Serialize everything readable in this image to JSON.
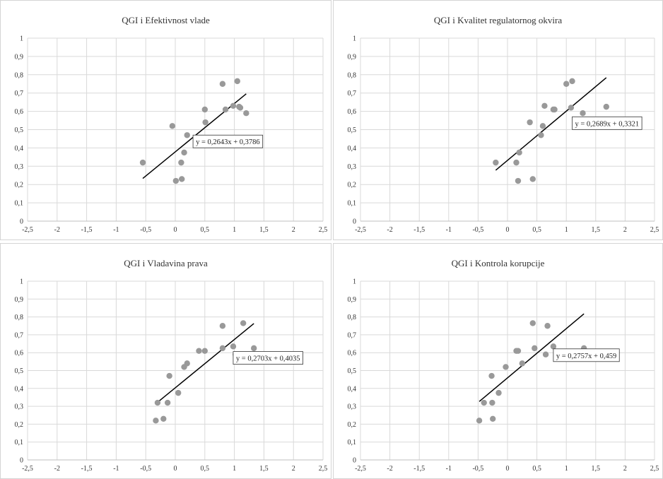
{
  "chart_data": [
    {
      "type": "scatter",
      "title": "QGI i Efektivnost vlade",
      "xlim": [
        -2.5,
        2.5
      ],
      "ylim": [
        0,
        1
      ],
      "xticks": [
        "-2,5",
        "-2",
        "-1,5",
        "-1",
        "-0,5",
        "0",
        "0,5",
        "1",
        "1,5",
        "2",
        "2,5"
      ],
      "yticks": [
        "0",
        "0,1",
        "0,2",
        "0,3",
        "0,4",
        "0,5",
        "0,6",
        "0,7",
        "0,8",
        "0,9",
        "1"
      ],
      "grid": true,
      "marker_color": "#999999",
      "line_color": "#000000",
      "points": [
        [
          -0.55,
          0.32
        ],
        [
          -0.05,
          0.52
        ],
        [
          0.01,
          0.22
        ],
        [
          0.1,
          0.32
        ],
        [
          0.11,
          0.23
        ],
        [
          0.15,
          0.375
        ],
        [
          0.2,
          0.47
        ],
        [
          0.5,
          0.61
        ],
        [
          0.51,
          0.54
        ],
        [
          0.8,
          0.75
        ],
        [
          0.85,
          0.61
        ],
        [
          0.98,
          0.63
        ],
        [
          1.05,
          0.765
        ],
        [
          1.08,
          0.625
        ],
        [
          1.1,
          0.62
        ],
        [
          1.2,
          0.59
        ]
      ],
      "trendline": {
        "slope": 0.2643,
        "intercept": 0.3786,
        "x_range": [
          -0.55,
          1.2
        ],
        "equation": "y = 0,2643x + 0,3786",
        "label_pos": [
          0.3,
          0.42
        ]
      }
    },
    {
      "type": "scatter",
      "title": "QGI i Kvalitet regulatornog okvira",
      "xlim": [
        -2.5,
        2.5
      ],
      "ylim": [
        0,
        1
      ],
      "xticks": [
        "-2,5",
        "-2",
        "-1,5",
        "-1",
        "-0,5",
        "0",
        "0,5",
        "1",
        "1,5",
        "2",
        "2,5"
      ],
      "yticks": [
        "0",
        "0,1",
        "0,2",
        "0,3",
        "0,4",
        "0,5",
        "0,6",
        "0,7",
        "0,8",
        "0,9",
        "1"
      ],
      "grid": true,
      "marker_color": "#999999",
      "line_color": "#000000",
      "points": [
        [
          -0.2,
          0.32
        ],
        [
          0.15,
          0.32
        ],
        [
          0.18,
          0.22
        ],
        [
          0.2,
          0.375
        ],
        [
          0.38,
          0.54
        ],
        [
          0.43,
          0.23
        ],
        [
          0.57,
          0.47
        ],
        [
          0.6,
          0.52
        ],
        [
          0.63,
          0.63
        ],
        [
          0.78,
          0.61
        ],
        [
          0.8,
          0.61
        ],
        [
          1.0,
          0.75
        ],
        [
          1.08,
          0.62
        ],
        [
          1.1,
          0.765
        ],
        [
          1.28,
          0.59
        ],
        [
          1.68,
          0.625
        ]
      ],
      "trendline": {
        "slope": 0.2689,
        "intercept": 0.3321,
        "x_range": [
          -0.2,
          1.68
        ],
        "equation": "y = 0,2689x + 0,3321",
        "label_pos": [
          1.1,
          0.52
        ]
      }
    },
    {
      "type": "scatter",
      "title": "QGI i Vladavina prava",
      "xlim": [
        -2.5,
        2.5
      ],
      "ylim": [
        0,
        1
      ],
      "xticks": [
        "-2,5",
        "-2",
        "-1,5",
        "-1",
        "-0,5",
        "0",
        "0,5",
        "1",
        "1,5",
        "2",
        "2,5"
      ],
      "yticks": [
        "0",
        "0,1",
        "0,2",
        "0,3",
        "0,4",
        "0,5",
        "0,6",
        "0,7",
        "0,8",
        "0,9",
        "1"
      ],
      "grid": true,
      "marker_color": "#999999",
      "line_color": "#000000",
      "points": [
        [
          -0.33,
          0.22
        ],
        [
          -0.3,
          0.32
        ],
        [
          -0.2,
          0.23
        ],
        [
          -0.13,
          0.32
        ],
        [
          -0.1,
          0.47
        ],
        [
          0.05,
          0.375
        ],
        [
          0.15,
          0.52
        ],
        [
          0.2,
          0.54
        ],
        [
          0.4,
          0.61
        ],
        [
          0.5,
          0.61
        ],
        [
          0.8,
          0.625
        ],
        [
          0.8,
          0.75
        ],
        [
          0.98,
          0.635
        ],
        [
          1.02,
          0.59
        ],
        [
          1.15,
          0.765
        ],
        [
          1.33,
          0.625
        ]
      ],
      "trendline": {
        "slope": 0.2703,
        "intercept": 0.4035,
        "x_range": [
          -0.33,
          1.33
        ],
        "equation": "y = 0,2703x + 0,4035",
        "label_pos": [
          0.98,
          0.555
        ]
      }
    },
    {
      "type": "scatter",
      "title": "QGI i Kontrola korupcije",
      "xlim": [
        -2.5,
        2.5
      ],
      "ylim": [
        0,
        1
      ],
      "xticks": [
        "-2,5",
        "-2",
        "-1,5",
        "-1",
        "-0,5",
        "0",
        "0,5",
        "1",
        "1,5",
        "2",
        "2,5"
      ],
      "yticks": [
        "0",
        "0,1",
        "0,2",
        "0,3",
        "0,4",
        "0,5",
        "0,6",
        "0,7",
        "0,8",
        "0,9",
        "1"
      ],
      "grid": true,
      "marker_color": "#999999",
      "line_color": "#000000",
      "points": [
        [
          -0.48,
          0.22
        ],
        [
          -0.4,
          0.32
        ],
        [
          -0.27,
          0.47
        ],
        [
          -0.26,
          0.32
        ],
        [
          -0.25,
          0.23
        ],
        [
          -0.15,
          0.375
        ],
        [
          -0.03,
          0.52
        ],
        [
          0.15,
          0.61
        ],
        [
          0.18,
          0.61
        ],
        [
          0.25,
          0.54
        ],
        [
          0.43,
          0.765
        ],
        [
          0.46,
          0.625
        ],
        [
          0.65,
          0.59
        ],
        [
          0.68,
          0.75
        ],
        [
          0.78,
          0.635
        ],
        [
          1.3,
          0.625
        ]
      ],
      "trendline": {
        "slope": 0.2757,
        "intercept": 0.459,
        "x_range": [
          -0.48,
          1.3
        ],
        "equation": "y = 0,2757x + 0,459",
        "label_pos": [
          0.78,
          0.57
        ]
      }
    }
  ]
}
